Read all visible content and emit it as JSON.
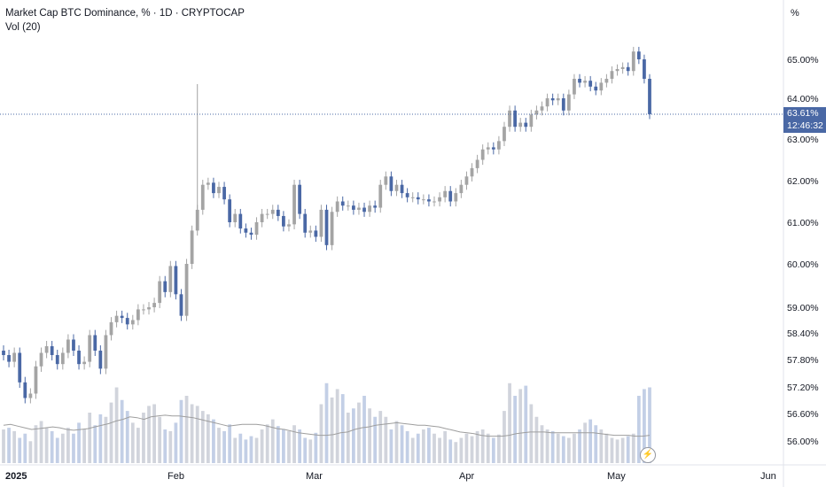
{
  "header": {
    "title": "Market Cap BTC Dominance, % · 1D · CRYPTOCAP",
    "volume_label": "Vol (20)"
  },
  "price_scale": {
    "unit": "%",
    "last_value": "63.61%",
    "countdown": "12:46:32"
  },
  "colors": {
    "up": "#a4a4a4",
    "down": "#4a68a5",
    "vol_up": "#d1d4dc",
    "vol_down": "#c3cfe6",
    "ma": "#9e9e9e",
    "last_line": "#4a68a5"
  },
  "chart_data": {
    "type": "candlestick",
    "x_labels": [
      "2025",
      "Feb",
      "Mar",
      "Apr",
      "May",
      "Jun"
    ],
    "y_ticks": [
      "65.00%",
      "64.00%",
      "63.00%",
      "62.00%",
      "61.00%",
      "60.00%",
      "59.00%",
      "58.40%",
      "57.80%",
      "57.20%",
      "56.60%",
      "56.00%"
    ],
    "y_tick_values": [
      65.0,
      64.0,
      63.0,
      62.0,
      61.0,
      60.0,
      59.0,
      58.4,
      57.8,
      57.2,
      56.6,
      56.0
    ],
    "last_price": 63.61,
    "closes": [
      57.9,
      57.75,
      57.95,
      57.3,
      56.95,
      57.05,
      57.65,
      57.95,
      58.1,
      57.9,
      57.7,
      57.95,
      58.25,
      58.0,
      57.7,
      57.75,
      58.35,
      58.0,
      57.6,
      58.35,
      58.65,
      58.8,
      58.75,
      58.6,
      58.7,
      58.95,
      58.95,
      59.0,
      59.1,
      59.6,
      59.35,
      59.95,
      59.3,
      58.8,
      60.0,
      60.8,
      61.3,
      61.9,
      61.95,
      61.7,
      61.85,
      61.55,
      61.0,
      61.2,
      60.85,
      60.75,
      60.7,
      61.0,
      61.2,
      61.2,
      61.3,
      61.15,
      60.9,
      60.95,
      61.9,
      61.2,
      60.75,
      60.8,
      60.65,
      61.3,
      60.45,
      61.25,
      61.5,
      61.4,
      61.4,
      61.3,
      61.35,
      61.25,
      61.4,
      61.35,
      61.9,
      62.1,
      61.75,
      61.9,
      61.7,
      61.6,
      61.6,
      61.55,
      61.55,
      61.5,
      61.5,
      61.6,
      61.75,
      61.5,
      61.7,
      61.9,
      62.1,
      62.3,
      62.5,
      62.75,
      62.8,
      62.75,
      62.95,
      63.3,
      63.7,
      63.3,
      63.4,
      63.3,
      63.6,
      63.7,
      63.8,
      64.0,
      63.95,
      64.0,
      63.7,
      64.1,
      64.5,
      64.4,
      64.45,
      64.3,
      64.2,
      64.4,
      64.5,
      64.7,
      64.75,
      64.8,
      64.7,
      65.2,
      65.0,
      64.5,
      63.61
    ],
    "volumes": [
      40,
      42,
      38,
      30,
      35,
      26,
      45,
      50,
      42,
      38,
      30,
      35,
      42,
      35,
      48,
      40,
      60,
      45,
      58,
      55,
      72,
      90,
      75,
      62,
      48,
      42,
      60,
      68,
      70,
      55,
      40,
      38,
      48,
      75,
      80,
      70,
      68,
      62,
      58,
      52,
      42,
      38,
      46,
      30,
      35,
      28,
      32,
      30,
      40,
      46,
      52,
      44,
      40,
      38,
      45,
      40,
      30,
      28,
      36,
      70,
      95,
      78,
      88,
      82,
      60,
      65,
      72,
      80,
      65,
      55,
      62,
      55,
      40,
      50,
      45,
      38,
      30,
      35,
      40,
      42,
      35,
      30,
      38,
      28,
      25,
      30,
      35,
      32,
      38,
      40,
      35,
      30,
      34,
      62,
      95,
      80,
      88,
      92,
      70,
      55,
      45,
      40,
      38,
      35,
      32,
      30,
      35,
      40,
      48,
      52,
      45,
      40,
      35,
      30,
      28,
      30,
      32,
      35,
      80,
      88,
      90
    ],
    "ma_points": [
      45,
      46,
      44,
      42,
      40,
      41,
      42,
      43,
      42,
      40,
      39,
      40,
      41,
      43,
      45,
      47,
      50,
      52,
      55,
      54,
      52,
      55,
      56,
      57,
      56,
      56,
      55,
      54,
      52,
      50,
      48,
      46,
      44,
      45,
      46,
      46,
      46,
      45,
      43,
      41,
      40,
      38,
      36,
      35,
      34,
      33,
      33,
      34,
      36,
      37,
      40,
      42,
      43,
      45,
      46,
      47,
      48,
      47,
      46,
      45,
      45,
      44,
      43,
      41,
      39,
      37,
      36,
      35,
      33,
      32,
      32,
      32,
      33,
      35,
      36,
      37,
      37,
      37,
      36,
      36,
      36,
      36,
      36,
      36,
      36,
      35,
      34,
      33,
      33,
      33,
      32,
      32,
      33
    ]
  }
}
